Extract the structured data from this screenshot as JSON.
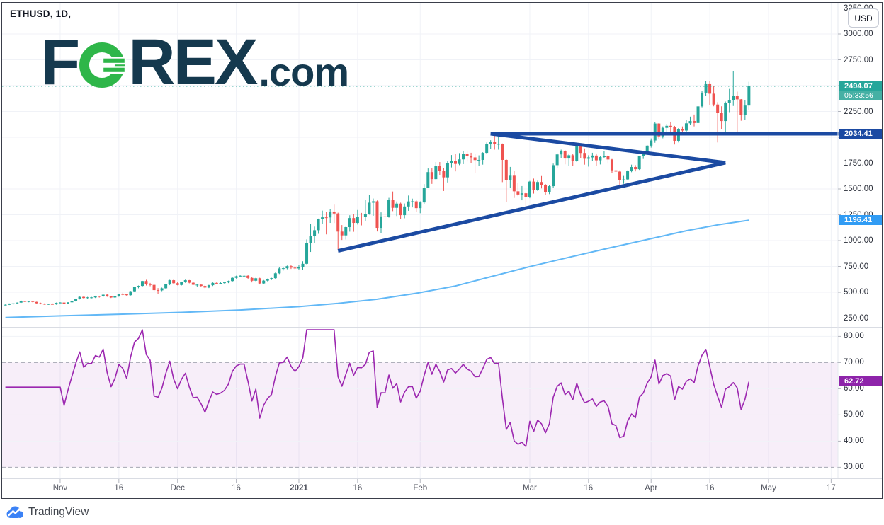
{
  "header": {
    "symbol_text": "ETHUSD, 1D,"
  },
  "watermark": {
    "f": "F",
    "rex": "REX",
    "com": ".com"
  },
  "price_axis": {
    "currency_button": "USD",
    "tick_values": [
      3250,
      3000,
      2750,
      2500,
      2250,
      2000,
      1750,
      1500,
      1250,
      1000,
      750,
      500,
      250
    ],
    "tick_labels": [
      "3250.00",
      "3000.00",
      "2750.00",
      "2500.00",
      "2250.00",
      "2000.00",
      "1750.00",
      "1500.00",
      "1250.00",
      "1000.00",
      "750.00",
      "500.00",
      "250.00"
    ]
  },
  "rsi_axis": {
    "tick_values": [
      80,
      70,
      60,
      50,
      40,
      30
    ],
    "tick_labels": [
      "80.00",
      "70.00",
      "60.00",
      "50.00",
      "40.00",
      "30.00"
    ]
  },
  "time_axis": {
    "ticks": [
      {
        "label": "Nov",
        "day": 14
      },
      {
        "label": "16",
        "day": 29
      },
      {
        "label": "Dec",
        "day": 44
      },
      {
        "label": "16",
        "day": 59
      },
      {
        "label": "2021",
        "day": 75
      },
      {
        "label": "16",
        "day": 90
      },
      {
        "label": "Feb",
        "day": 106
      },
      {
        "label": "Mar",
        "day": 134
      },
      {
        "label": "16",
        "day": 149
      },
      {
        "label": "Apr",
        "day": 165
      },
      {
        "label": "16",
        "day": 180
      },
      {
        "label": "May",
        "day": 195
      },
      {
        "label": "17",
        "day": 211
      }
    ]
  },
  "badges": {
    "last_price": "2494.07",
    "countdown": "05:33:56",
    "trend_level": "2034.41",
    "ma_value": "1196.41",
    "rsi_value": "62.72"
  },
  "attribution": {
    "brand": "TradingView"
  },
  "colors": {
    "up": "#26a69a",
    "down": "#ef5350",
    "trend_blue": "#1b4aa2",
    "ma_line": "#62b8f6",
    "ma_badge": "#319cf4",
    "rsi_line": "#9c27b0",
    "rsi_badge": "#8e24aa",
    "rsi_band_fill": "rgba(156,39,176,0.08)",
    "band_dash": "#a5a8b2",
    "last_badge": "#26a69a",
    "countdown_badge": "#45b0a4",
    "level_badge": "#1b4aa2",
    "grid": "#f0f2f7",
    "logo_navy": "#15394e",
    "logo_green": "#2eb649",
    "tv_blue": "#3b82f6"
  },
  "chart_data": {
    "type": "candlestick",
    "symbol": "ETHUSD",
    "interval": "1D",
    "quote_currency": "USD",
    "price_axis_range": [
      250,
      3250
    ],
    "grid": true,
    "last_price": 2494.07,
    "countdown": "05:33:56",
    "candles": [
      [
        378,
        382,
        372,
        379
      ],
      [
        379,
        392,
        376,
        385
      ],
      [
        385,
        394,
        380,
        392
      ],
      [
        392,
        402,
        388,
        399
      ],
      [
        399,
        420,
        396,
        414
      ],
      [
        414,
        418,
        404,
        408
      ],
      [
        408,
        416,
        402,
        413
      ],
      [
        413,
        418,
        400,
        406
      ],
      [
        406,
        409,
        388,
        393
      ],
      [
        393,
        399,
        383,
        388
      ],
      [
        388,
        392,
        378,
        383
      ],
      [
        383,
        390,
        378,
        386
      ],
      [
        386,
        392,
        380,
        383
      ],
      [
        383,
        400,
        379,
        397
      ],
      [
        397,
        404,
        392,
        400
      ],
      [
        400,
        404,
        384,
        388
      ],
      [
        388,
        404,
        386,
        402
      ],
      [
        402,
        420,
        398,
        417
      ],
      [
        417,
        438,
        410,
        435
      ],
      [
        435,
        458,
        430,
        455
      ],
      [
        455,
        460,
        438,
        444
      ],
      [
        444,
        455,
        436,
        450
      ],
      [
        450,
        455,
        440,
        450
      ],
      [
        450,
        466,
        444,
        463
      ],
      [
        463,
        466,
        448,
        462
      ],
      [
        462,
        478,
        455,
        476
      ],
      [
        476,
        480,
        455,
        460
      ],
      [
        460,
        465,
        444,
        449
      ],
      [
        449,
        462,
        445,
        460
      ],
      [
        460,
        484,
        456,
        482
      ],
      [
        482,
        495,
        470,
        479
      ],
      [
        479,
        482,
        460,
        471
      ],
      [
        471,
        512,
        468,
        509
      ],
      [
        509,
        552,
        500,
        549
      ],
      [
        549,
        565,
        538,
        561
      ],
      [
        561,
        610,
        555,
        608
      ],
      [
        608,
        620,
        565,
        578
      ],
      [
        578,
        590,
        558,
        571
      ],
      [
        571,
        578,
        505,
        520
      ],
      [
        520,
        540,
        482,
        518
      ],
      [
        518,
        545,
        510,
        538
      ],
      [
        538,
        580,
        530,
        576
      ],
      [
        576,
        620,
        568,
        616
      ],
      [
        616,
        622,
        580,
        587
      ],
      [
        587,
        600,
        566,
        570
      ],
      [
        570,
        603,
        565,
        597
      ],
      [
        597,
        622,
        590,
        616
      ],
      [
        616,
        618,
        586,
        592
      ],
      [
        592,
        600,
        570,
        572
      ],
      [
        572,
        580,
        555,
        573
      ],
      [
        573,
        578,
        548,
        561
      ],
      [
        561,
        570,
        538,
        545
      ],
      [
        545,
        572,
        540,
        568
      ],
      [
        568,
        595,
        560,
        590
      ],
      [
        590,
        596,
        576,
        586
      ],
      [
        586,
        595,
        578,
        589
      ],
      [
        589,
        600,
        580,
        595
      ],
      [
        595,
        612,
        588,
        608
      ],
      [
        608,
        645,
        600,
        639
      ],
      [
        639,
        660,
        632,
        654
      ],
      [
        654,
        666,
        645,
        659
      ],
      [
        659,
        670,
        650,
        659
      ],
      [
        659,
        665,
        630,
        638
      ],
      [
        638,
        645,
        595,
        611
      ],
      [
        611,
        640,
        605,
        635
      ],
      [
        635,
        640,
        575,
        585
      ],
      [
        585,
        618,
        580,
        612
      ],
      [
        612,
        632,
        605,
        627
      ],
      [
        627,
        640,
        618,
        636
      ],
      [
        636,
        690,
        630,
        683
      ],
      [
        683,
        740,
        676,
        730
      ],
      [
        730,
        745,
        710,
        732
      ],
      [
        732,
        758,
        722,
        752
      ],
      [
        752,
        760,
        725,
        738
      ],
      [
        738,
        755,
        715,
        730
      ],
      [
        730,
        760,
        716,
        745
      ],
      [
        745,
        800,
        718,
        775
      ],
      [
        775,
        1011,
        770,
        978
      ],
      [
        978,
        1162,
        890,
        1041
      ],
      [
        1041,
        1135,
        974,
        1100
      ],
      [
        1100,
        1213,
        1065,
        1208
      ],
      [
        1208,
        1290,
        1158,
        1225
      ],
      [
        1225,
        1275,
        1060,
        1224
      ],
      [
        1224,
        1302,
        1171,
        1281
      ],
      [
        1281,
        1348,
        1170,
        1262
      ],
      [
        1262,
        1270,
        915,
        1087
      ],
      [
        1087,
        1150,
        1006,
        1050
      ],
      [
        1050,
        1136,
        1010,
        1130
      ],
      [
        1130,
        1245,
        1086,
        1218
      ],
      [
        1218,
        1258,
        1085,
        1171
      ],
      [
        1171,
        1296,
        1155,
        1233
      ],
      [
        1233,
        1268,
        1147,
        1232
      ],
      [
        1232,
        1392,
        1185,
        1259
      ],
      [
        1259,
        1440,
        1251,
        1367
      ],
      [
        1367,
        1407,
        1240,
        1380
      ],
      [
        1380,
        1388,
        1088,
        1123
      ],
      [
        1123,
        1273,
        1075,
        1234
      ],
      [
        1234,
        1272,
        1195,
        1233
      ],
      [
        1233,
        1414,
        1222,
        1392
      ],
      [
        1392,
        1475,
        1285,
        1317
      ],
      [
        1317,
        1379,
        1238,
        1358
      ],
      [
        1358,
        1367,
        1207,
        1246
      ],
      [
        1246,
        1359,
        1216,
        1330
      ],
      [
        1330,
        1436,
        1288,
        1379
      ],
      [
        1379,
        1406,
        1321,
        1380
      ],
      [
        1380,
        1394,
        1274,
        1314
      ],
      [
        1314,
        1380,
        1265,
        1369
      ],
      [
        1369,
        1547,
        1350,
        1512
      ],
      [
        1512,
        1698,
        1508,
        1663
      ],
      [
        1663,
        1702,
        1549,
        1595
      ],
      [
        1595,
        1760,
        1592,
        1719
      ],
      [
        1719,
        1760,
        1632,
        1675
      ],
      [
        1675,
        1702,
        1480,
        1612
      ],
      [
        1612,
        1770,
        1563,
        1750
      ],
      [
        1750,
        1828,
        1708,
        1768
      ],
      [
        1768,
        1840,
        1670,
        1742
      ],
      [
        1742,
        1847,
        1730,
        1786
      ],
      [
        1786,
        1863,
        1740,
        1840
      ],
      [
        1840,
        1871,
        1765,
        1816
      ],
      [
        1816,
        1850,
        1752,
        1805
      ],
      [
        1805,
        1835,
        1655,
        1779
      ],
      [
        1779,
        1825,
        1722,
        1781
      ],
      [
        1781,
        1855,
        1735,
        1849
      ],
      [
        1849,
        1950,
        1840,
        1937
      ],
      [
        1937,
        1972,
        1890,
        1956
      ],
      [
        1956,
        2015,
        1880,
        1932
      ],
      [
        1932,
        2042,
        1880,
        1936
      ],
      [
        1936,
        1940,
        1566,
        1781
      ],
      [
        1781,
        1787,
        1372,
        1583
      ],
      [
        1583,
        1713,
        1511,
        1628
      ],
      [
        1628,
        1672,
        1413,
        1477
      ],
      [
        1477,
        1562,
        1430,
        1446
      ],
      [
        1446,
        1528,
        1390,
        1458
      ],
      [
        1458,
        1468,
        1294,
        1421
      ],
      [
        1421,
        1578,
        1410,
        1571
      ],
      [
        1571,
        1600,
        1455,
        1492
      ],
      [
        1492,
        1580,
        1480,
        1567
      ],
      [
        1567,
        1625,
        1505,
        1540
      ],
      [
        1540,
        1548,
        1440,
        1470
      ],
      [
        1470,
        1535,
        1450,
        1527
      ],
      [
        1527,
        1745,
        1510,
        1730
      ],
      [
        1730,
        1845,
        1700,
        1834
      ],
      [
        1834,
        1880,
        1800,
        1870
      ],
      [
        1870,
        1877,
        1738,
        1794
      ],
      [
        1794,
        1843,
        1720,
        1826
      ],
      [
        1826,
        1840,
        1725,
        1770
      ],
      [
        1770,
        1944,
        1760,
        1924
      ],
      [
        1924,
        1940,
        1800,
        1848
      ],
      [
        1848,
        1892,
        1735,
        1792
      ],
      [
        1792,
        1826,
        1716,
        1805
      ],
      [
        1805,
        1850,
        1770,
        1823
      ],
      [
        1823,
        1843,
        1720,
        1777
      ],
      [
        1777,
        1817,
        1737,
        1808
      ],
      [
        1808,
        1868,
        1800,
        1817
      ],
      [
        1817,
        1830,
        1745,
        1785
      ],
      [
        1785,
        1790,
        1655,
        1680
      ],
      [
        1680,
        1720,
        1540,
        1668
      ],
      [
        1668,
        1680,
        1536,
        1585
      ],
      [
        1585,
        1626,
        1550,
        1592
      ],
      [
        1592,
        1680,
        1585,
        1671
      ],
      [
        1671,
        1735,
        1662,
        1712
      ],
      [
        1712,
        1730,
        1670,
        1691
      ],
      [
        1691,
        1820,
        1684,
        1817
      ],
      [
        1817,
        1860,
        1790,
        1846
      ],
      [
        1846,
        1925,
        1840,
        1919
      ],
      [
        1919,
        1989,
        1900,
        1969
      ],
      [
        1969,
        2145,
        1947,
        2133
      ],
      [
        2133,
        2137,
        1985,
        2009
      ],
      [
        2009,
        2105,
        1990,
        2091
      ],
      [
        2091,
        2130,
        2055,
        2111
      ],
      [
        2111,
        2151,
        2045,
        2098
      ],
      [
        2098,
        2110,
        1930,
        1966
      ],
      [
        1966,
        2089,
        1950,
        2080
      ],
      [
        2080,
        2105,
        2020,
        2065
      ],
      [
        2065,
        2165,
        2055,
        2135
      ],
      [
        2135,
        2200,
        2117,
        2157
      ],
      [
        2157,
        2220,
        2105,
        2138
      ],
      [
        2138,
        2305,
        2135,
        2299
      ],
      [
        2299,
        2447,
        2290,
        2432
      ],
      [
        2432,
        2545,
        2400,
        2514
      ],
      [
        2514,
        2548,
        2310,
        2422
      ],
      [
        2422,
        2495,
        2300,
        2317
      ],
      [
        2317,
        2340,
        1950,
        2236
      ],
      [
        2236,
        2300,
        2080,
        2157
      ],
      [
        2157,
        2346,
        2055,
        2330
      ],
      [
        2330,
        2468,
        2243,
        2357
      ],
      [
        2357,
        2644,
        2303,
        2400
      ],
      [
        2400,
        2442,
        2030,
        2367
      ],
      [
        2367,
        2370,
        2160,
        2213
      ],
      [
        2213,
        2356,
        2168,
        2307
      ],
      [
        2307,
        2537,
        2268,
        2494.07
      ]
    ],
    "ma_line": {
      "name": "long-term moving average",
      "last_value": 1196.41,
      "points": [
        [
          0,
          255
        ],
        [
          15,
          272
        ],
        [
          30,
          288
        ],
        [
          45,
          305
        ],
        [
          60,
          328
        ],
        [
          75,
          360
        ],
        [
          85,
          392
        ],
        [
          95,
          432
        ],
        [
          105,
          490
        ],
        [
          115,
          560
        ],
        [
          124,
          650
        ],
        [
          134,
          748
        ],
        [
          144,
          838
        ],
        [
          154,
          925
        ],
        [
          164,
          1010
        ],
        [
          174,
          1095
        ],
        [
          182,
          1152
        ],
        [
          190,
          1196.41
        ]
      ]
    },
    "trendlines": [
      {
        "name": "horizontal-resistance",
        "price": 2034.41,
        "from_day": 124,
        "extend_right": true
      },
      {
        "name": "triangle-upper",
        "from": [
          124,
          2034.41
        ],
        "to": [
          184,
          1754
        ]
      },
      {
        "name": "triangle-lower",
        "from": [
          85,
          900
        ],
        "to": [
          184,
          1754
        ]
      }
    ],
    "rsi_pane": {
      "type": "line",
      "indicator": "RSI",
      "period": 14,
      "overbought": 70,
      "oversold": 30,
      "last_value": 62.72,
      "axis_range": [
        30,
        80
      ]
    }
  }
}
